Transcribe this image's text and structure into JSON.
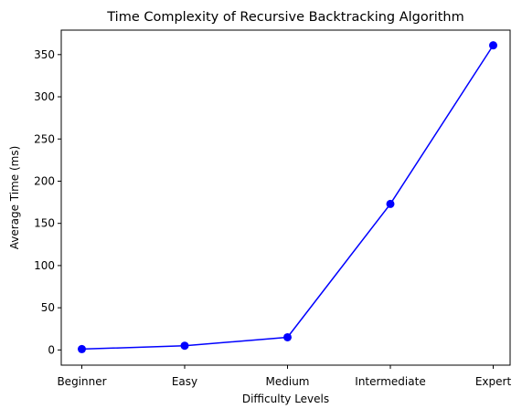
{
  "chart_data": {
    "type": "line",
    "title": "Time Complexity of Recursive Backtracking Algorithm",
    "xlabel": "Difficulty Levels",
    "ylabel": "Average Time (ms)",
    "categories": [
      "Beginner",
      "Easy",
      "Medium",
      "Intermediate",
      "Expert"
    ],
    "series": [
      {
        "values": [
          1,
          5,
          15,
          173,
          361
        ]
      }
    ],
    "ylim": [
      -18,
      379
    ],
    "yticks": [
      0,
      50,
      100,
      150,
      200,
      250,
      300,
      350
    ],
    "line_color": "#0000ff",
    "marker": "circle",
    "grid": false,
    "legend": "none"
  }
}
